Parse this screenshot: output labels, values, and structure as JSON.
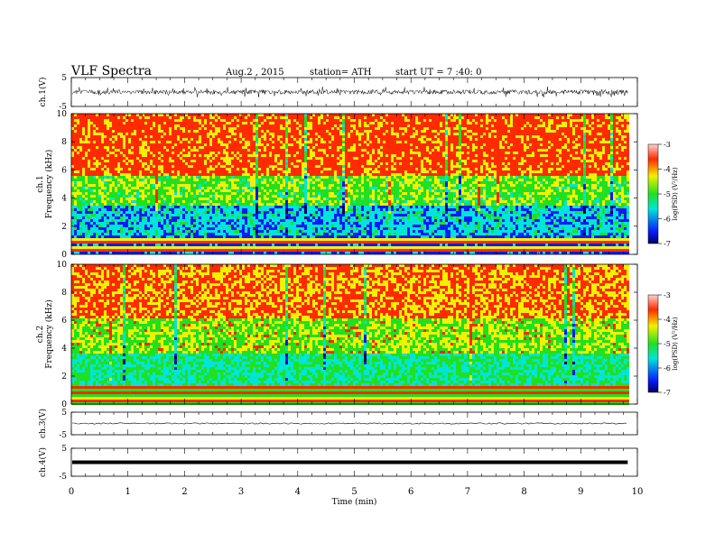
{
  "header": {
    "title": "VLF  Spectra",
    "date": "Aug.2  , 2015",
    "station": "station= ATH",
    "start": "start  UT  =   7 :40: 0"
  },
  "colors": {
    "red": "#ff2a00",
    "yellow": "#f2f200",
    "green": "#20e020",
    "cyan": "#00e5d8",
    "blue": "#0a1aff",
    "navy": "#000060",
    "axis": "#000000"
  },
  "chart_data": [
    {
      "type": "line",
      "ylabel": "ch.1(V)",
      "ylim": [
        -5,
        5
      ],
      "yticks": [
        "5",
        "-5"
      ],
      "description_level": "noisy waveform centered near 0, amplitude about 1-2 V"
    },
    {
      "type": "heatmap",
      "ylabel_top": "ch.1",
      "ylabel": "Frequency  (kHz)",
      "ylim": [
        0,
        10
      ],
      "yticks": [
        "0",
        "2",
        "4",
        "6",
        "8",
        "10"
      ],
      "colorbar": {
        "label": "log(PSD) (V²/Hz)",
        "range": [
          -7,
          -3
        ],
        "ticks": [
          "-3",
          "-4",
          "-5",
          "-6",
          "-7"
        ]
      },
      "bands_khz": [
        {
          "from": 0,
          "to": 1.4,
          "level": "mixed bands (red/cyan/blue lines)"
        },
        {
          "from": 1.4,
          "to": 3.6,
          "level": -5.8
        },
        {
          "from": 3.6,
          "to": 5.6,
          "level": -4.7
        },
        {
          "from": 5.6,
          "to": 10,
          "level": -3.6
        }
      ]
    },
    {
      "type": "heatmap",
      "ylabel_top": "ch.2",
      "ylabel": "Frequency  (kHz)",
      "ylim": [
        0,
        10
      ],
      "yticks": [
        "0",
        "2",
        "4",
        "6",
        "8",
        "10"
      ],
      "colorbar": {
        "label": "log(PSD) (V²/Hz)",
        "range": [
          -7,
          -3
        ],
        "ticks": [
          "-3",
          "-4",
          "-5",
          "-6",
          "-7"
        ]
      },
      "bands_khz": [
        {
          "from": 0,
          "to": 1.4,
          "level": "mixed bands (red/green lines)"
        },
        {
          "from": 1.4,
          "to": 3.8,
          "level": -5.3
        },
        {
          "from": 3.8,
          "to": 6.2,
          "level": -4.5
        },
        {
          "from": 6.2,
          "to": 10,
          "level": -3.8
        }
      ]
    },
    {
      "type": "line",
      "ylabel": "ch.3(V)",
      "ylim": [
        -5,
        5
      ],
      "yticks": [
        "5",
        "-5"
      ],
      "value_approx": 0
    },
    {
      "type": "line",
      "ylabel": "ch.4(V)",
      "ylim": [
        -5,
        5
      ],
      "yticks": [
        "5",
        "-5"
      ],
      "value_approx": 0
    }
  ],
  "time_axis": {
    "xlabel": "Time  (min)",
    "xlim": [
      0,
      10
    ],
    "xticks": [
      "0",
      "1",
      "2",
      "3",
      "4",
      "5",
      "6",
      "7",
      "8",
      "9",
      "10"
    ],
    "data_end_min": 9.83
  }
}
